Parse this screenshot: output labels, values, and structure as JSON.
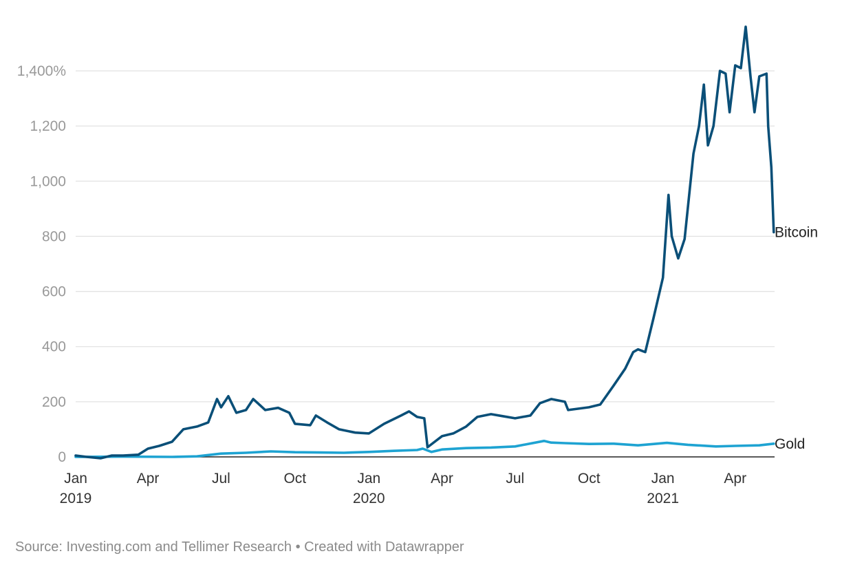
{
  "chart_data": {
    "type": "line",
    "title": "",
    "xlabel": "",
    "ylabel": "",
    "ylim": [
      0,
      1400
    ],
    "yticks": [
      0,
      200,
      400,
      600,
      800,
      1000,
      1200,
      1400
    ],
    "ytick_labels": [
      "0",
      "200",
      "400",
      "600",
      "800",
      "1,000",
      "1,200",
      "1,400%"
    ],
    "xlim": [
      "2019-01-01",
      "2021-05-20"
    ],
    "xticks": [
      {
        "date": "2019-01-01",
        "label": "Jan",
        "year": "2019"
      },
      {
        "date": "2019-04-01",
        "label": "Apr",
        "year": ""
      },
      {
        "date": "2019-07-01",
        "label": "Jul",
        "year": ""
      },
      {
        "date": "2019-10-01",
        "label": "Oct",
        "year": ""
      },
      {
        "date": "2020-01-01",
        "label": "Jan",
        "year": "2020"
      },
      {
        "date": "2020-04-01",
        "label": "Apr",
        "year": ""
      },
      {
        "date": "2020-07-01",
        "label": "Jul",
        "year": ""
      },
      {
        "date": "2020-10-01",
        "label": "Oct",
        "year": ""
      },
      {
        "date": "2021-01-01",
        "label": "Jan",
        "year": "2021"
      },
      {
        "date": "2021-04-01",
        "label": "Apr",
        "year": ""
      }
    ],
    "grid": true,
    "legend": "direct labels at line ends",
    "series": [
      {
        "name": "Bitcoin",
        "color": "#0a4f78",
        "points": [
          [
            "2019-01-01",
            5
          ],
          [
            "2019-01-15",
            0
          ],
          [
            "2019-02-01",
            -5
          ],
          [
            "2019-02-15",
            5
          ],
          [
            "2019-03-01",
            5
          ],
          [
            "2019-03-20",
            8
          ],
          [
            "2019-04-01",
            30
          ],
          [
            "2019-04-15",
            40
          ],
          [
            "2019-05-01",
            55
          ],
          [
            "2019-05-15",
            100
          ],
          [
            "2019-06-01",
            110
          ],
          [
            "2019-06-15",
            125
          ],
          [
            "2019-06-26",
            210
          ],
          [
            "2019-07-01",
            180
          ],
          [
            "2019-07-10",
            220
          ],
          [
            "2019-07-20",
            160
          ],
          [
            "2019-08-01",
            170
          ],
          [
            "2019-08-10",
            210
          ],
          [
            "2019-08-25",
            170
          ],
          [
            "2019-09-10",
            178
          ],
          [
            "2019-09-24",
            160
          ],
          [
            "2019-10-01",
            120
          ],
          [
            "2019-10-20",
            115
          ],
          [
            "2019-10-27",
            150
          ],
          [
            "2019-11-10",
            125
          ],
          [
            "2019-11-25",
            100
          ],
          [
            "2019-12-15",
            88
          ],
          [
            "2020-01-01",
            85
          ],
          [
            "2020-01-20",
            120
          ],
          [
            "2020-02-10",
            150
          ],
          [
            "2020-02-20",
            165
          ],
          [
            "2020-03-01",
            145
          ],
          [
            "2020-03-10",
            140
          ],
          [
            "2020-03-14",
            35
          ],
          [
            "2020-04-01",
            75
          ],
          [
            "2020-04-15",
            85
          ],
          [
            "2020-05-01",
            110
          ],
          [
            "2020-05-15",
            145
          ],
          [
            "2020-06-01",
            155
          ],
          [
            "2020-06-15",
            148
          ],
          [
            "2020-07-01",
            140
          ],
          [
            "2020-07-20",
            150
          ],
          [
            "2020-08-01",
            195
          ],
          [
            "2020-08-15",
            210
          ],
          [
            "2020-09-01",
            200
          ],
          [
            "2020-09-05",
            170
          ],
          [
            "2020-10-01",
            180
          ],
          [
            "2020-10-15",
            190
          ],
          [
            "2020-11-01",
            260
          ],
          [
            "2020-11-15",
            320
          ],
          [
            "2020-11-25",
            380
          ],
          [
            "2020-12-01",
            390
          ],
          [
            "2020-12-10",
            380
          ],
          [
            "2020-12-20",
            500
          ],
          [
            "2021-01-01",
            650
          ],
          [
            "2021-01-08",
            950
          ],
          [
            "2021-01-12",
            800
          ],
          [
            "2021-01-20",
            720
          ],
          [
            "2021-01-28",
            790
          ],
          [
            "2021-02-08",
            1100
          ],
          [
            "2021-02-15",
            1200
          ],
          [
            "2021-02-21",
            1350
          ],
          [
            "2021-02-26",
            1130
          ],
          [
            "2021-03-05",
            1200
          ],
          [
            "2021-03-13",
            1400
          ],
          [
            "2021-03-20",
            1390
          ],
          [
            "2021-03-25",
            1250
          ],
          [
            "2021-04-01",
            1420
          ],
          [
            "2021-04-08",
            1410
          ],
          [
            "2021-04-14",
            1560
          ],
          [
            "2021-04-20",
            1380
          ],
          [
            "2021-04-25",
            1250
          ],
          [
            "2021-05-01",
            1380
          ],
          [
            "2021-05-10",
            1390
          ],
          [
            "2021-05-12",
            1200
          ],
          [
            "2021-05-16",
            1050
          ],
          [
            "2021-05-19",
            815
          ]
        ]
      },
      {
        "name": "Gold",
        "color": "#1ea3d2",
        "points": [
          [
            "2019-01-01",
            0
          ],
          [
            "2019-03-01",
            1
          ],
          [
            "2019-05-01",
            0
          ],
          [
            "2019-06-01",
            2
          ],
          [
            "2019-07-01",
            12
          ],
          [
            "2019-08-01",
            15
          ],
          [
            "2019-09-01",
            20
          ],
          [
            "2019-10-01",
            17
          ],
          [
            "2019-11-01",
            16
          ],
          [
            "2019-12-01",
            15
          ],
          [
            "2020-01-01",
            18
          ],
          [
            "2020-02-01",
            22
          ],
          [
            "2020-03-01",
            25
          ],
          [
            "2020-03-08",
            30
          ],
          [
            "2020-03-19",
            18
          ],
          [
            "2020-04-01",
            27
          ],
          [
            "2020-05-01",
            32
          ],
          [
            "2020-06-01",
            34
          ],
          [
            "2020-07-01",
            38
          ],
          [
            "2020-08-06",
            58
          ],
          [
            "2020-08-15",
            52
          ],
          [
            "2020-09-01",
            50
          ],
          [
            "2020-10-01",
            47
          ],
          [
            "2020-11-01",
            48
          ],
          [
            "2020-12-01",
            42
          ],
          [
            "2021-01-06",
            51
          ],
          [
            "2021-02-01",
            44
          ],
          [
            "2021-03-08",
            38
          ],
          [
            "2021-04-01",
            40
          ],
          [
            "2021-05-01",
            42
          ],
          [
            "2021-05-19",
            48
          ]
        ]
      }
    ]
  },
  "footer": {
    "source": "Source: Investing.com and Tellimer Research • Created with Datawrapper"
  }
}
